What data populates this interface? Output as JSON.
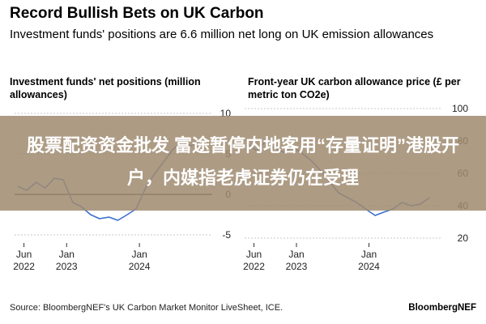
{
  "title": "Record Bullish Bets on UK Carbon",
  "subtitle": "Investment funds' positions are 6.6 million net long on UK emission allowances",
  "overlay_text": "股票配资资金批发 富途暂停内地客用“存量证明”港股开户，内媒指老虎证券仍在受理",
  "source": "Source: BloombergNEF's UK Carbon Market Monitor LiveSheet, ICE.",
  "brand": "BloombergNEF",
  "colors": {
    "line": "#3b6fd0",
    "grid": "#c8c8c8",
    "zero": "#111111",
    "overlay": "#a08a70"
  },
  "chart_data": [
    {
      "type": "line",
      "title": "Investment funds' net positions (million allowances)",
      "x_tick_labels": [
        [
          "Jun",
          "2022"
        ],
        [
          "Jan",
          "2023"
        ],
        [
          "Jan",
          "2024"
        ]
      ],
      "x_ticks": [
        "2022-06-01",
        "2023-01-01",
        "2024-01-01"
      ],
      "y_ticks": [
        -5,
        0,
        5,
        10
      ],
      "ylim": [
        -6,
        11
      ],
      "xlim": [
        "2022-04-15",
        "2024-12-31"
      ],
      "series": [
        {
          "x": [
            "2022-05-01",
            "2022-06-15",
            "2022-08-01",
            "2022-09-15",
            "2022-11-01",
            "2022-12-15",
            "2023-02-01",
            "2023-03-15",
            "2023-05-01",
            "2023-06-15",
            "2023-08-01",
            "2023-09-15",
            "2023-11-01",
            "2023-12-15",
            "2024-02-01",
            "2024-03-15",
            "2024-05-01",
            "2024-06-15",
            "2024-08-01",
            "2024-09-15",
            "2024-11-01"
          ],
          "y": [
            1.0,
            0.5,
            1.5,
            0.8,
            2.0,
            1.8,
            -1.0,
            -1.5,
            -2.5,
            -3.0,
            -2.8,
            -3.2,
            -2.5,
            -1.8,
            0.8,
            2.5,
            4.0,
            5.5,
            6.5,
            6.0,
            6.6
          ]
        }
      ]
    },
    {
      "type": "line",
      "title": "Front-year UK carbon allowance price (£ per metric ton CO2e)",
      "x_tick_labels": [
        [
          "Jun",
          "2022"
        ],
        [
          "Jan",
          "2023"
        ],
        [
          "Jan",
          "2024"
        ]
      ],
      "x_ticks": [
        "2022-06-01",
        "2023-01-01",
        "2024-01-01"
      ],
      "y_ticks": [
        20,
        40,
        60,
        80,
        100
      ],
      "ylim": [
        17,
        102
      ],
      "xlim": [
        "2022-04-15",
        "2024-12-31"
      ],
      "series": [
        {
          "x": [
            "2022-05-01",
            "2022-06-15",
            "2022-08-01",
            "2022-09-15",
            "2022-11-01",
            "2022-12-15",
            "2023-02-01",
            "2023-03-15",
            "2023-05-01",
            "2023-06-15",
            "2023-08-01",
            "2023-09-15",
            "2023-11-01",
            "2023-12-15",
            "2024-02-01",
            "2024-03-15",
            "2024-05-01",
            "2024-06-15",
            "2024-08-01",
            "2024-09-15",
            "2024-11-01"
          ],
          "y": [
            78,
            74,
            80,
            75,
            73,
            76,
            72,
            68,
            62,
            55,
            48,
            45,
            42,
            38,
            34,
            36,
            38,
            42,
            40,
            41,
            45
          ]
        }
      ]
    }
  ]
}
